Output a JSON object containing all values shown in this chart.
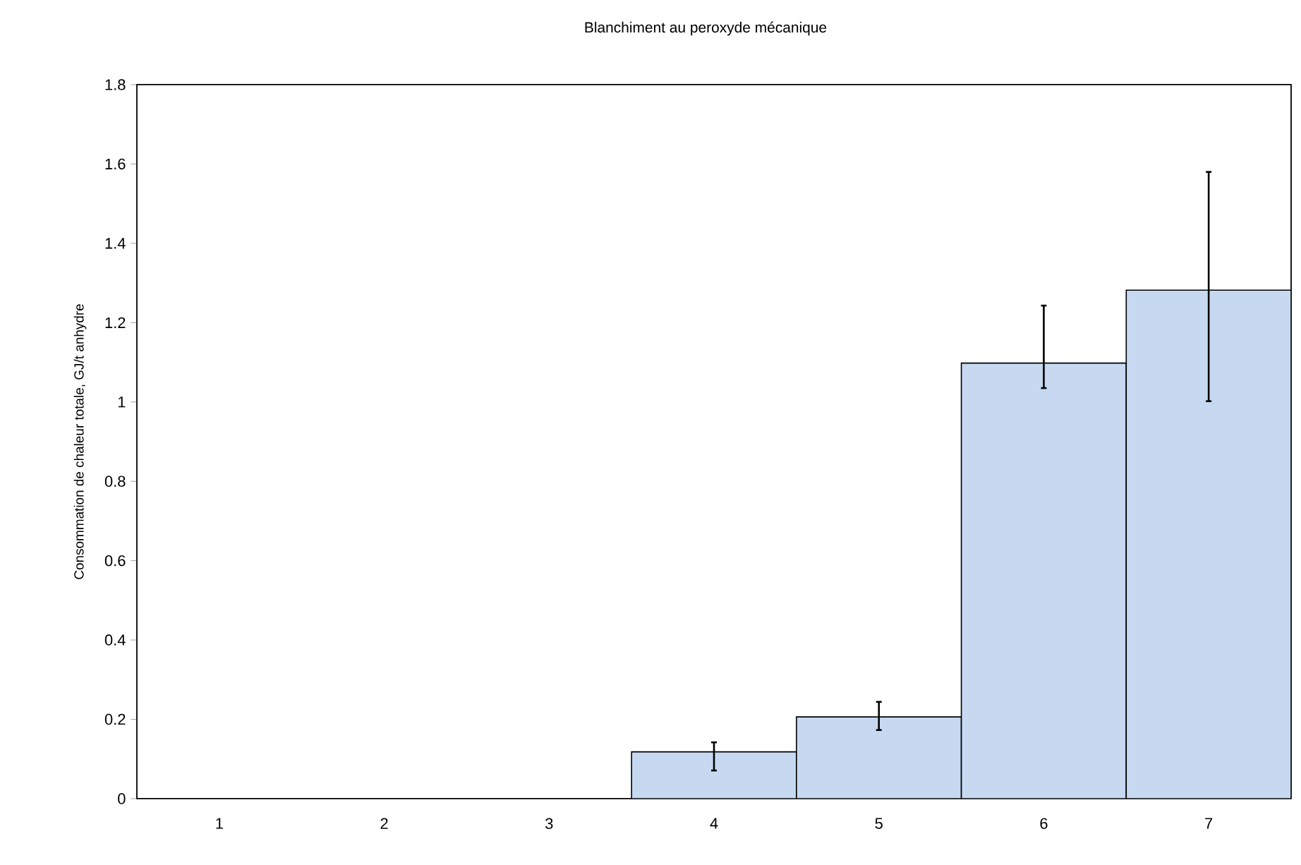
{
  "chart_data": {
    "type": "bar",
    "title": "Blanchiment au peroxyde mécanique",
    "ylabel": "Consommation de chaleur totale, GJ/t anhydre",
    "categories": [
      "1",
      "2",
      "3",
      "4",
      "5",
      "6",
      "7"
    ],
    "values": [
      null,
      null,
      null,
      0.118,
      0.206,
      1.098,
      1.282
    ],
    "errors": [
      null,
      null,
      null,
      [
        0.071,
        0.142
      ],
      [
        0.173,
        0.244
      ],
      [
        1.035,
        1.243
      ],
      [
        1.002,
        1.58
      ]
    ],
    "color": "#c6d9f1",
    "ylim": [
      0,
      1.8
    ],
    "yticks": [
      0,
      0.2,
      0.4,
      0.6,
      0.8,
      1,
      1.2,
      1.4,
      1.6,
      1.8
    ],
    "grid": false
  }
}
